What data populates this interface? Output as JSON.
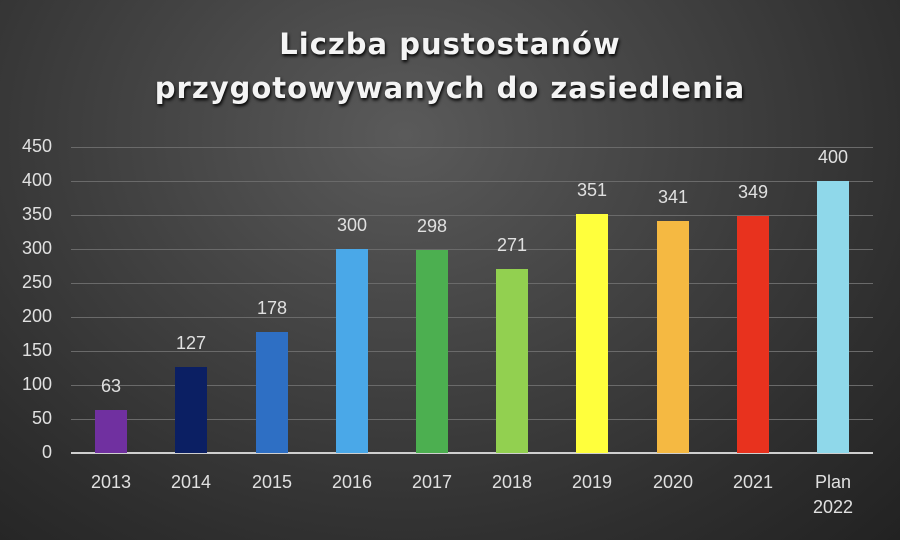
{
  "chart_data": {
    "type": "bar",
    "title": "Liczba pustostanów przygotowywanych do zasiedlenia",
    "title_lines": [
      "Liczba pustostanów",
      "przygotowywanych do zasiedlenia"
    ],
    "categories": [
      "2013",
      "2014",
      "2015",
      "2016",
      "2017",
      "2018",
      "2019",
      "2020",
      "2021",
      "Plan 2022"
    ],
    "category_lines": [
      [
        "2013"
      ],
      [
        "2014"
      ],
      [
        "2015"
      ],
      [
        "2016"
      ],
      [
        "2017"
      ],
      [
        "2018"
      ],
      [
        "2019"
      ],
      [
        "2020"
      ],
      [
        "2021"
      ],
      [
        "Plan",
        "2022"
      ]
    ],
    "values": [
      63,
      127,
      178,
      300,
      298,
      271,
      351,
      341,
      349,
      400
    ],
    "colors": [
      "#7030a0",
      "#0b1f63",
      "#2e6fc4",
      "#4aa8e8",
      "#4caf50",
      "#92d050",
      "#ffff3c",
      "#f5b942",
      "#e8321e",
      "#8fd8ea"
    ],
    "xlabel": "",
    "ylabel": "",
    "ylim": [
      0,
      450
    ],
    "yticks": [
      0,
      50,
      100,
      150,
      200,
      250,
      300,
      350,
      400,
      450
    ],
    "grid": true,
    "legend": "none",
    "data_labels": true
  }
}
